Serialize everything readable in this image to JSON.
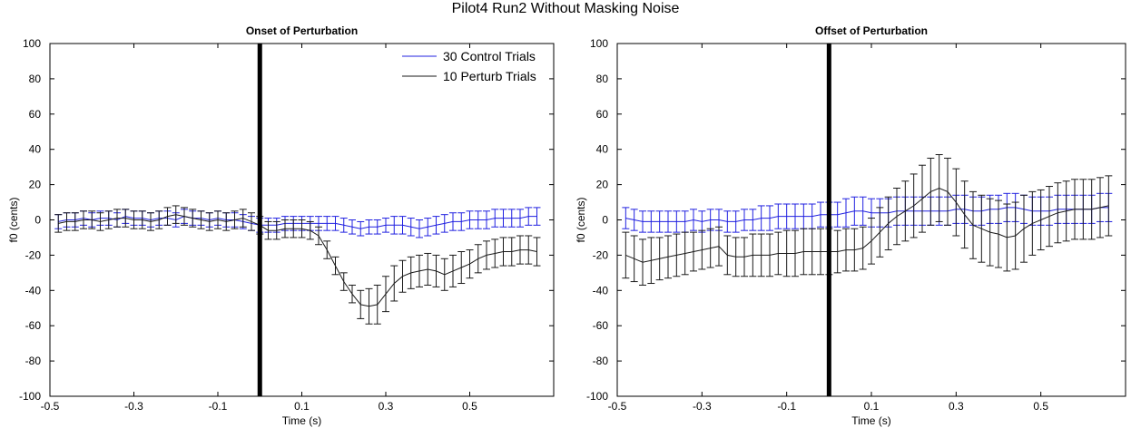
{
  "figure_title": "Pilot4 Run2 Without Masking Noise",
  "colors": {
    "control": "#2020e0",
    "perturb": "#1a1a1a",
    "marker": "#000000",
    "axes": "#000000"
  },
  "legend": {
    "placement": "top-right",
    "entries": [
      "30 Control Trials",
      "10 Perturb Trials"
    ]
  },
  "chart_data": [
    {
      "type": "line",
      "title": "Onset of Perturbation",
      "xlabel": "Time (s)",
      "ylabel": "f0 (cents)",
      "xlim": [
        -0.5,
        0.7
      ],
      "ylim": [
        -100,
        100
      ],
      "xticks": [
        -0.5,
        -0.3,
        -0.1,
        0.1,
        0.3,
        0.5
      ],
      "xtick_labels": [
        "-0.5",
        "-0.3",
        "-0.1",
        "0.1",
        "0.3",
        "0.5"
      ],
      "yticks": [
        100,
        80,
        60,
        40,
        20,
        0,
        -20,
        -40,
        -60,
        -80,
        -100
      ],
      "ytick_labels": [
        "100",
        "80",
        "60",
        "40",
        "20",
        "0",
        "-20",
        "-40",
        "-60",
        "-80",
        "-100"
      ],
      "grid": false,
      "vertical_marker_x": 0,
      "x": [
        -0.48,
        -0.46,
        -0.44,
        -0.42,
        -0.4,
        -0.38,
        -0.36,
        -0.34,
        -0.32,
        -0.3,
        -0.28,
        -0.26,
        -0.24,
        -0.22,
        -0.2,
        -0.18,
        -0.16,
        -0.14,
        -0.12,
        -0.1,
        -0.08,
        -0.06,
        -0.04,
        -0.02,
        0.0,
        0.02,
        0.04,
        0.06,
        0.08,
        0.1,
        0.12,
        0.14,
        0.16,
        0.18,
        0.2,
        0.22,
        0.24,
        0.26,
        0.28,
        0.3,
        0.32,
        0.34,
        0.36,
        0.38,
        0.4,
        0.42,
        0.44,
        0.46,
        0.48,
        0.5,
        0.52,
        0.54,
        0.56,
        0.58,
        0.6,
        0.62,
        0.64,
        0.66
      ],
      "series": [
        {
          "name": "30 Control Trials",
          "values": [
            -1,
            0,
            0,
            1,
            0,
            1,
            1,
            0,
            2,
            1,
            1,
            0,
            1,
            1,
            0,
            2,
            1,
            1,
            0,
            1,
            0,
            0,
            -1,
            -2,
            -3,
            -3,
            -3,
            -2,
            -2,
            -2,
            -2,
            -2,
            -2,
            -2,
            -3,
            -4,
            -5,
            -4,
            -4,
            -3,
            -3,
            -3,
            -4,
            -5,
            -4,
            -3,
            -2,
            -1,
            -1,
            0,
            0,
            0,
            1,
            1,
            1,
            1,
            2,
            2
          ],
          "error": [
            4,
            4,
            4,
            4,
            4,
            4,
            4,
            4,
            4,
            4,
            4,
            4,
            4,
            4,
            4,
            4,
            4,
            4,
            4,
            4,
            4,
            4,
            4,
            4,
            4,
            4,
            4,
            4,
            4,
            4,
            4,
            4,
            4,
            4,
            4,
            4,
            4,
            4,
            4,
            4,
            5,
            5,
            5,
            5,
            5,
            5,
            5,
            5,
            5,
            5,
            5,
            5,
            5,
            5,
            5,
            5,
            5,
            5
          ]
        },
        {
          "name": "10 Perturb Trials",
          "values": [
            -2,
            -1,
            -1,
            0,
            0,
            -1,
            0,
            1,
            1,
            0,
            0,
            -1,
            0,
            2,
            3,
            2,
            1,
            0,
            -1,
            0,
            -1,
            0,
            1,
            -1,
            -3,
            -6,
            -6,
            -5,
            -5,
            -5,
            -6,
            -9,
            -17,
            -26,
            -35,
            -42,
            -48,
            -49,
            -48,
            -42,
            -36,
            -32,
            -30,
            -29,
            -28,
            -29,
            -31,
            -29,
            -27,
            -25,
            -22,
            -20,
            -19,
            -18,
            -18,
            -17,
            -17,
            -18
          ],
          "error": [
            5,
            5,
            5,
            5,
            5,
            5,
            5,
            5,
            5,
            5,
            5,
            5,
            5,
            5,
            5,
            5,
            5,
            5,
            5,
            5,
            5,
            5,
            5,
            5,
            5,
            5,
            5,
            5,
            5,
            5,
            5,
            5,
            5,
            5,
            5,
            5,
            8,
            10,
            11,
            10,
            10,
            9,
            9,
            9,
            9,
            9,
            9,
            9,
            9,
            8,
            8,
            8,
            8,
            8,
            8,
            8,
            8,
            8
          ]
        }
      ]
    },
    {
      "type": "line",
      "title": "Offset of Perturbation",
      "xlabel": "Time (s)",
      "ylabel": "f0 (cents)",
      "xlim": [
        -0.5,
        0.7
      ],
      "ylim": [
        -100,
        100
      ],
      "xticks": [
        -0.5,
        -0.3,
        -0.1,
        0.1,
        0.3,
        0.5
      ],
      "xtick_labels": [
        "-0.5",
        "-0.3",
        "-0.1",
        "0.1",
        "0.3",
        "0.5"
      ],
      "yticks": [
        100,
        80,
        60,
        40,
        20,
        0,
        -20,
        -40,
        -60,
        -80,
        -100
      ],
      "ytick_labels": [
        "100",
        "80",
        "60",
        "40",
        "20",
        "0",
        "-20",
        "-40",
        "-60",
        "-80",
        "-100"
      ],
      "grid": false,
      "vertical_marker_x": 0,
      "x": [
        -0.48,
        -0.46,
        -0.44,
        -0.42,
        -0.4,
        -0.38,
        -0.36,
        -0.34,
        -0.32,
        -0.3,
        -0.28,
        -0.26,
        -0.24,
        -0.22,
        -0.2,
        -0.18,
        -0.16,
        -0.14,
        -0.12,
        -0.1,
        -0.08,
        -0.06,
        -0.04,
        -0.02,
        0.0,
        0.02,
        0.04,
        0.06,
        0.08,
        0.1,
        0.12,
        0.14,
        0.16,
        0.18,
        0.2,
        0.22,
        0.24,
        0.26,
        0.28,
        0.3,
        0.32,
        0.34,
        0.36,
        0.38,
        0.4,
        0.42,
        0.44,
        0.46,
        0.48,
        0.5,
        0.52,
        0.54,
        0.56,
        0.58,
        0.6,
        0.62,
        0.64,
        0.66
      ],
      "series": [
        {
          "name": "30 Control Trials",
          "values": [
            1,
            0,
            -1,
            -1,
            -1,
            -1,
            -1,
            -1,
            0,
            -1,
            0,
            0,
            -1,
            -1,
            0,
            0,
            1,
            1,
            2,
            2,
            2,
            2,
            2,
            3,
            3,
            3,
            4,
            5,
            5,
            4,
            4,
            4,
            5,
            5,
            5,
            5,
            5,
            5,
            5,
            6,
            6,
            5,
            5,
            6,
            6,
            7,
            7,
            6,
            5,
            5,
            5,
            6,
            6,
            6,
            6,
            6,
            7,
            7
          ],
          "error": [
            6,
            6,
            6,
            6,
            6,
            6,
            6,
            6,
            6,
            6,
            6,
            6,
            6,
            6,
            6,
            6,
            7,
            7,
            7,
            7,
            7,
            7,
            7,
            7,
            7,
            7,
            8,
            8,
            8,
            8,
            8,
            8,
            8,
            8,
            8,
            8,
            8,
            8,
            8,
            8,
            8,
            8,
            8,
            8,
            8,
            8,
            8,
            8,
            8,
            8,
            8,
            8,
            8,
            8,
            8,
            8,
            8,
            8
          ]
        },
        {
          "name": "10 Perturb Trials",
          "values": [
            -20,
            -22,
            -24,
            -23,
            -22,
            -21,
            -20,
            -19,
            -18,
            -17,
            -16,
            -15,
            -20,
            -21,
            -21,
            -20,
            -20,
            -20,
            -19,
            -19,
            -19,
            -18,
            -18,
            -18,
            -18,
            -18,
            -17,
            -17,
            -16,
            -12,
            -7,
            -2,
            2,
            5,
            8,
            12,
            16,
            18,
            16,
            10,
            3,
            -3,
            -5,
            -7,
            -8,
            -10,
            -9,
            -5,
            -2,
            0,
            2,
            4,
            5,
            6,
            6,
            6,
            7,
            8
          ],
          "error": [
            13,
            13,
            13,
            13,
            12,
            12,
            12,
            12,
            11,
            11,
            11,
            11,
            11,
            11,
            11,
            12,
            12,
            12,
            12,
            13,
            13,
            13,
            13,
            13,
            13,
            12,
            12,
            12,
            12,
            13,
            14,
            15,
            16,
            17,
            18,
            19,
            19,
            19,
            19,
            19,
            19,
            19,
            19,
            19,
            19,
            19,
            19,
            19,
            18,
            17,
            17,
            17,
            17,
            17,
            17,
            17,
            17,
            17
          ]
        }
      ]
    }
  ]
}
